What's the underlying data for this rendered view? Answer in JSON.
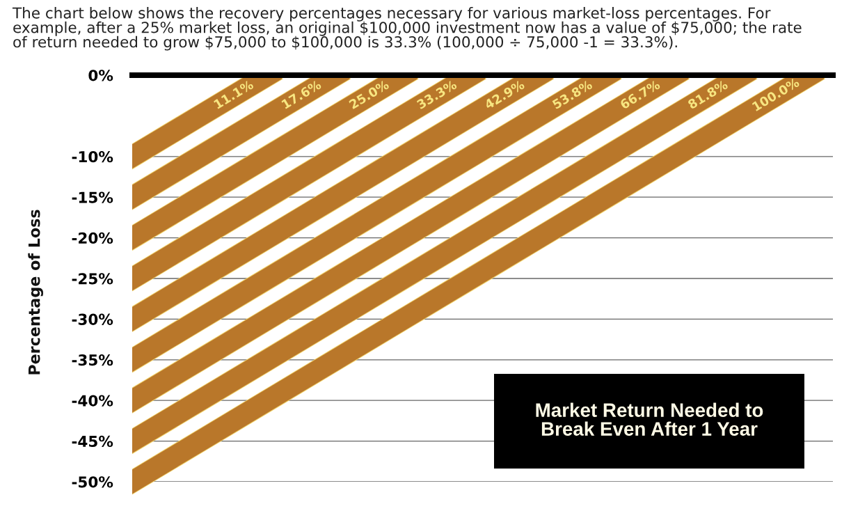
{
  "chart_data": {
    "type": "line",
    "title": "Market Return Needed to\nBreak Even After 1 Year",
    "annotations": [
      "The chart below shows the recovery percentages necessary for various market-loss percentages. For\nexample, after a 25% market loss, an original $100,000 investment now has a value of $75,000; the rate\nof return needed to grow $75,000 to $100,000 is 33.3% (100,000 ÷ 75,000 -1 = 33.3%)."
    ],
    "ylabel": "Percentage of Loss",
    "categories": [
      null,
      null,
      null,
      null,
      null,
      null,
      null,
      null,
      null,
      null,
      null
    ],
    "series": [
      {
        "name": "11.1%",
        "color": "#b9772a",
        "values": [
          -10,
          -5,
          0,
          null,
          null,
          null,
          null,
          null,
          null,
          null,
          null
        ]
      },
      {
        "name": "17.6%",
        "color": "#b9772a",
        "values": [
          -15,
          -10,
          -5,
          0,
          null,
          null,
          null,
          null,
          null,
          null,
          null
        ]
      },
      {
        "name": "25.0%",
        "color": "#b9772a",
        "values": [
          -20,
          -15,
          -10,
          -5,
          0,
          null,
          null,
          null,
          null,
          null,
          null
        ]
      },
      {
        "name": "33.3%",
        "color": "#b9772a",
        "values": [
          -25,
          -20,
          -15,
          -10,
          -5,
          0,
          null,
          null,
          null,
          null,
          null
        ]
      },
      {
        "name": "42.9%",
        "color": "#b9772a",
        "values": [
          -30,
          -25,
          -20,
          -15,
          -10,
          -5,
          0,
          null,
          null,
          null,
          null
        ]
      },
      {
        "name": "53.8%",
        "color": "#b9772a",
        "values": [
          -35,
          -30,
          -25,
          -20,
          -15,
          -10,
          -5,
          0,
          null,
          null,
          null
        ]
      },
      {
        "name": "66.7%",
        "color": "#b9772a",
        "values": [
          -40,
          -35,
          -30,
          -25,
          -20,
          -15,
          -10,
          -5,
          0,
          null,
          null
        ]
      },
      {
        "name": "81.8%",
        "color": "#b9772a",
        "values": [
          -45,
          -40,
          -35,
          -30,
          -25,
          -20,
          -15,
          -10,
          -5,
          0,
          null
        ]
      },
      {
        "name": "100.0%",
        "color": "#b9772a",
        "values": [
          -50,
          -45,
          -40,
          -35,
          -30,
          -25,
          -20,
          -15,
          -10,
          -5,
          0
        ]
      }
    ],
    "ylim": [
      -50,
      0
    ],
    "yticks": [
      {
        "value": 0,
        "label": "0%"
      },
      {
        "value": -10,
        "label": "-10%"
      },
      {
        "value": -15,
        "label": "-15%"
      },
      {
        "value": -20,
        "label": "-20%"
      },
      {
        "value": -25,
        "label": "-25%"
      },
      {
        "value": -30,
        "label": "-30%"
      },
      {
        "value": -35,
        "label": "-35%"
      },
      {
        "value": -40,
        "label": "-40%"
      },
      {
        "value": -45,
        "label": "-45%"
      },
      {
        "value": -50,
        "label": "-50%"
      }
    ],
    "grid": "y",
    "tick_labels": "y"
  }
}
